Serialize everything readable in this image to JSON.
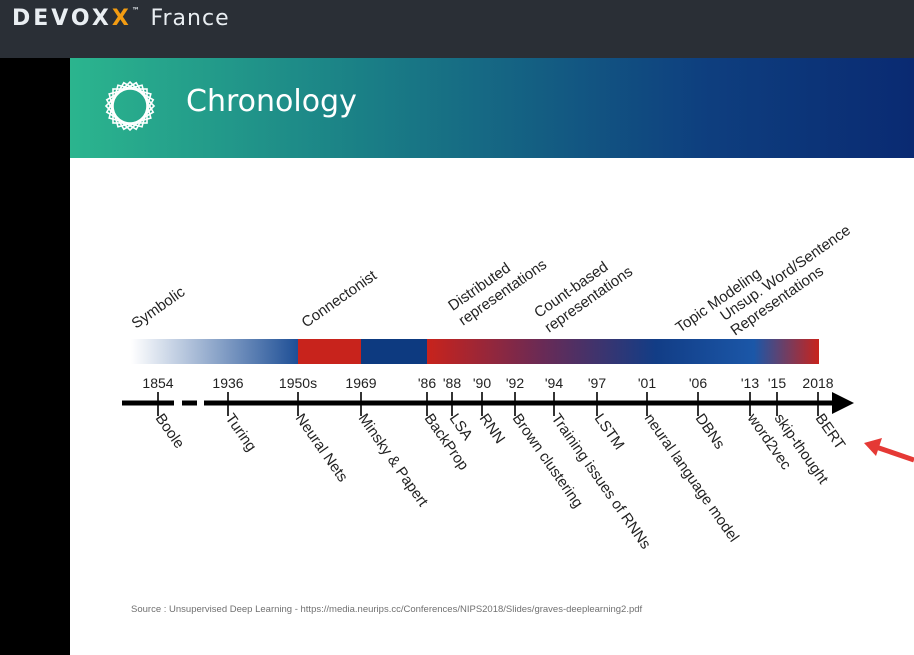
{
  "app": {
    "brand": "DEVOX",
    "brand_x": "X",
    "brand_tm": "™",
    "brand_suffix": "France"
  },
  "slide": {
    "title": "Chronology",
    "source": "Source : Unsupervised Deep Learning - https://media.neurips.cc/Conferences/NIPS2018/Slides/graves-deeplearning2.pdf"
  },
  "colors": {
    "header_start": "#2bb58e",
    "header_end": "#0a2a72",
    "red": "#c8231c",
    "blue": "#0d3a80",
    "arrow": "#e53935"
  },
  "eras": [
    {
      "line1": "Symbolic",
      "line2": ""
    },
    {
      "line1": "Connectonist",
      "line2": ""
    },
    {
      "line1": "Distributed",
      "line2": "representations"
    },
    {
      "line1": "Count-based",
      "line2": "representations"
    },
    {
      "line1": "Topic Modeling",
      "line2": ""
    },
    {
      "line1": "Unsup. Word/Sentence",
      "line2": "Representations"
    }
  ],
  "years": [
    "1854",
    "1936",
    "1950s",
    "1969",
    "'86",
    "'88",
    "'90",
    "'92",
    "'94",
    "'97",
    "'01",
    "'06",
    "'13",
    "'15",
    "2018"
  ],
  "events": [
    "Boole",
    "Turing",
    "Neural Nets",
    "Minsky & Papert",
    "BackProp",
    "LSA",
    "RNN",
    "Brown clustering",
    "Training issues of RNNs",
    "LSTM",
    "neural language model",
    "DBNs",
    "word2vec",
    "skip-thought",
    "BERT"
  ]
}
